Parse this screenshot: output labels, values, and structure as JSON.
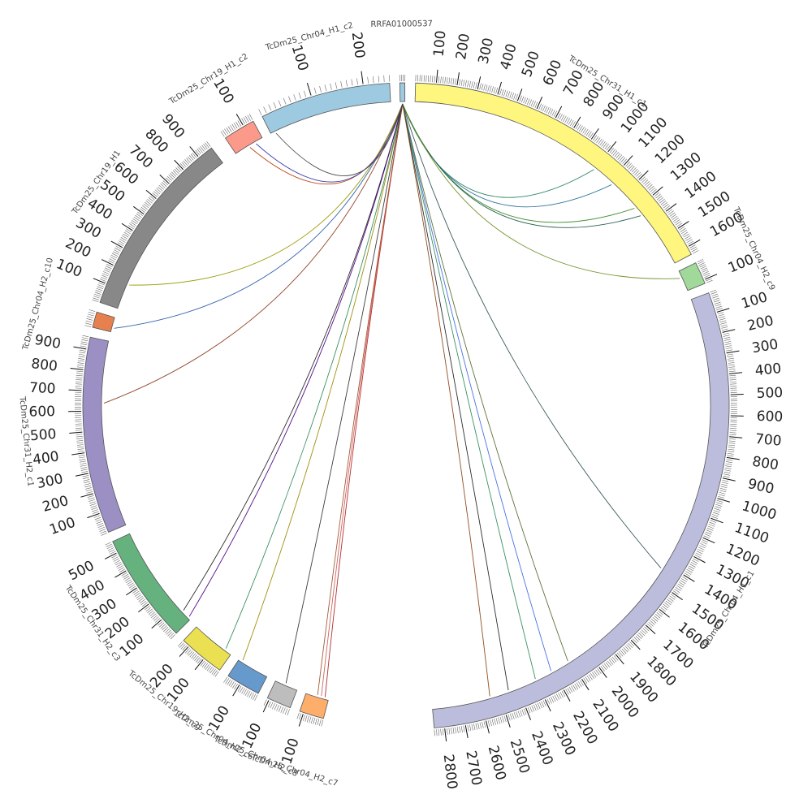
{
  "diagram": {
    "type": "circos",
    "segments": [
      {
        "id": "CLK",
        "name": "RRFA01000537",
        "color": "#9ecae1",
        "start_deg": 358.9,
        "end_deg": 359.8,
        "length": 30
      },
      {
        "id": "Y1",
        "name": "TcDm25_Chr31_H1_c1",
        "color": "#fff67f",
        "start_deg": 1.7,
        "end_deg": 62.0,
        "length": 1640
      },
      {
        "id": "G9",
        "name": "TcDm25_Chr04_H2_c9",
        "color": "#a1d99b",
        "start_deg": 63.7,
        "end_deg": 67.7,
        "length": 120
      },
      {
        "id": "L1",
        "name": "TcDm25_Chr04_H1_c1",
        "color": "#bcbddc",
        "start_deg": 69.5,
        "end_deg": 175.0,
        "length": 2850
      },
      {
        "id": "O7",
        "name": "TcDm25_Chr04_H2_c7",
        "color": "#fdae6b",
        "start_deg": 194.8,
        "end_deg": 199.2,
        "length": 120
      },
      {
        "id": "GR",
        "name": "TcDm25_Chr04_H2_c8",
        "color": "#bdbdbd",
        "start_deg": 201.0,
        "end_deg": 205.4,
        "length": 110
      },
      {
        "id": "B6",
        "name": "TcDm25_Chr04_H2_c6",
        "color": "#6699cc",
        "start_deg": 207.2,
        "end_deg": 213.4,
        "length": 170
      },
      {
        "id": "Y19",
        "name": "TcDm25_Chr19_H2_c9",
        "color": "#ebe051",
        "start_deg": 215.2,
        "end_deg": 223.5,
        "length": 240
      },
      {
        "id": "G3",
        "name": "TcDm25_Chr31_H2_c3",
        "color": "#66b27f",
        "start_deg": 225.3,
        "end_deg": 245.2,
        "length": 560
      },
      {
        "id": "P1",
        "name": "TcDm25_Chr31_H2_c1",
        "color": "#9c8fc4",
        "start_deg": 247.0,
        "end_deg": 282.3,
        "length": 960
      },
      {
        "id": "O10",
        "name": "TcDm25_Chr04_H2_c10",
        "color": "#e6814f",
        "start_deg": 284.1,
        "end_deg": 286.9,
        "length": 70
      },
      {
        "id": "GY",
        "name": "TcDm25_Chr19_H1",
        "color": "#888888",
        "start_deg": 288.7,
        "end_deg": 323.0,
        "length": 980
      },
      {
        "id": "S2",
        "name": "TcDm25_Chr19_H1_c2",
        "color": "#fb9a8a",
        "start_deg": 326.0,
        "end_deg": 331.8,
        "length": 150
      },
      {
        "id": "BL",
        "name": "TcDm25_Chr04_H1_c2",
        "color": "#9ecae1",
        "start_deg": 333.6,
        "end_deg": 357.1,
        "length": 250
      }
    ],
    "links": [
      {
        "a": "CLK",
        "b": "Y1",
        "pos": 1000,
        "color": "#1f7f5f"
      },
      {
        "a": "CLK",
        "b": "Y1",
        "pos": 1120,
        "color": "#2a6f9a"
      },
      {
        "a": "CLK",
        "b": "Y1",
        "pos": 1290,
        "color": "#3a8a2a"
      },
      {
        "a": "CLK",
        "b": "Y1",
        "pos": 1340,
        "color": "#1a5a4a"
      },
      {
        "a": "CLK",
        "b": "G9",
        "pos": 40,
        "color": "#6b8e23"
      },
      {
        "a": "CLK",
        "b": "L1",
        "pos": 1430,
        "color": "#2f4f4f"
      },
      {
        "a": "CLK",
        "b": "L1",
        "pos": 2110,
        "color": "#556b2f"
      },
      {
        "a": "CLK",
        "b": "L1",
        "pos": 2210,
        "color": "#4169e1"
      },
      {
        "a": "CLK",
        "b": "L1",
        "pos": 2300,
        "color": "#2e8b57"
      },
      {
        "a": "CLK",
        "b": "L1",
        "pos": 2450,
        "color": "#222222"
      },
      {
        "a": "CLK",
        "b": "L1",
        "pos": 2550,
        "color": "#8b4513"
      },
      {
        "a": "CLK",
        "b": "O7",
        "pos": 20,
        "color": "#b22222"
      },
      {
        "a": "CLK",
        "b": "O7",
        "pos": 40,
        "color": "#cd5c5c"
      },
      {
        "a": "CLK",
        "b": "O7",
        "pos": 60,
        "color": "#a0522d"
      },
      {
        "a": "CLK",
        "b": "GR",
        "pos": 60,
        "color": "#333333"
      },
      {
        "a": "CLK",
        "b": "B6",
        "pos": 150,
        "color": "#9a8a00"
      },
      {
        "a": "CLK",
        "b": "Y19",
        "pos": 40,
        "color": "#2e8b57"
      },
      {
        "a": "CLK",
        "b": "G3",
        "pos": 60,
        "color": "#222222"
      },
      {
        "a": "CLK",
        "b": "G3",
        "pos": 15,
        "color": "#4b0082"
      },
      {
        "a": "CLK",
        "b": "P1",
        "pos": 640,
        "color": "#8b3a1a"
      },
      {
        "a": "CLK",
        "b": "O10",
        "pos": 20,
        "color": "#2a5caa"
      },
      {
        "a": "CLK",
        "b": "GY",
        "pos": 140,
        "color": "#9a9a00"
      },
      {
        "a": "CLK",
        "b": "S2",
        "pos": 75,
        "color": "#b8400a"
      },
      {
        "a": "CLK",
        "b": "S2",
        "pos": 110,
        "color": "#3a3aaa"
      },
      {
        "a": "CLK",
        "b": "BL",
        "pos": 10,
        "color": "#444444"
      }
    ],
    "tick_step": 100,
    "label_step": 100
  }
}
